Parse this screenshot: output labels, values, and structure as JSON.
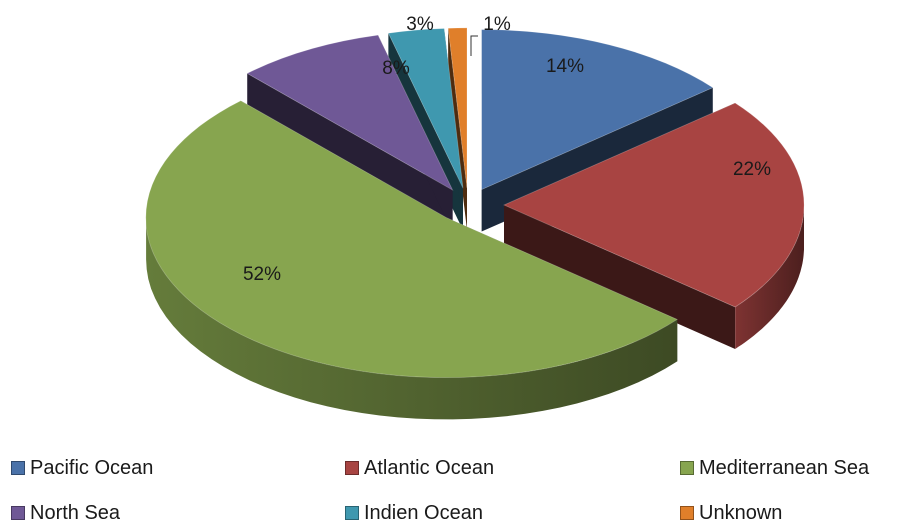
{
  "chart_data": {
    "type": "pie",
    "title": "",
    "series": [
      {
        "name": "Pacific Ocean",
        "value": 14,
        "label": "14%",
        "color": "#4a72a9"
      },
      {
        "name": "Atlantic Ocean",
        "value": 22,
        "label": "22%",
        "color": "#a84442"
      },
      {
        "name": "Mediterranean Sea",
        "value": 52,
        "label": "52%",
        "color": "#87a54f"
      },
      {
        "name": "North Sea",
        "value": 8,
        "label": "8%",
        "color": "#6f5896"
      },
      {
        "name": "Indien Ocean",
        "value": 3,
        "label": "3%",
        "color": "#3f98af"
      },
      {
        "name": "Unknown",
        "value": 1,
        "label": "1%",
        "color": "#e07f2a"
      }
    ],
    "legend_position": "bottom",
    "style": "3d-exploded"
  }
}
